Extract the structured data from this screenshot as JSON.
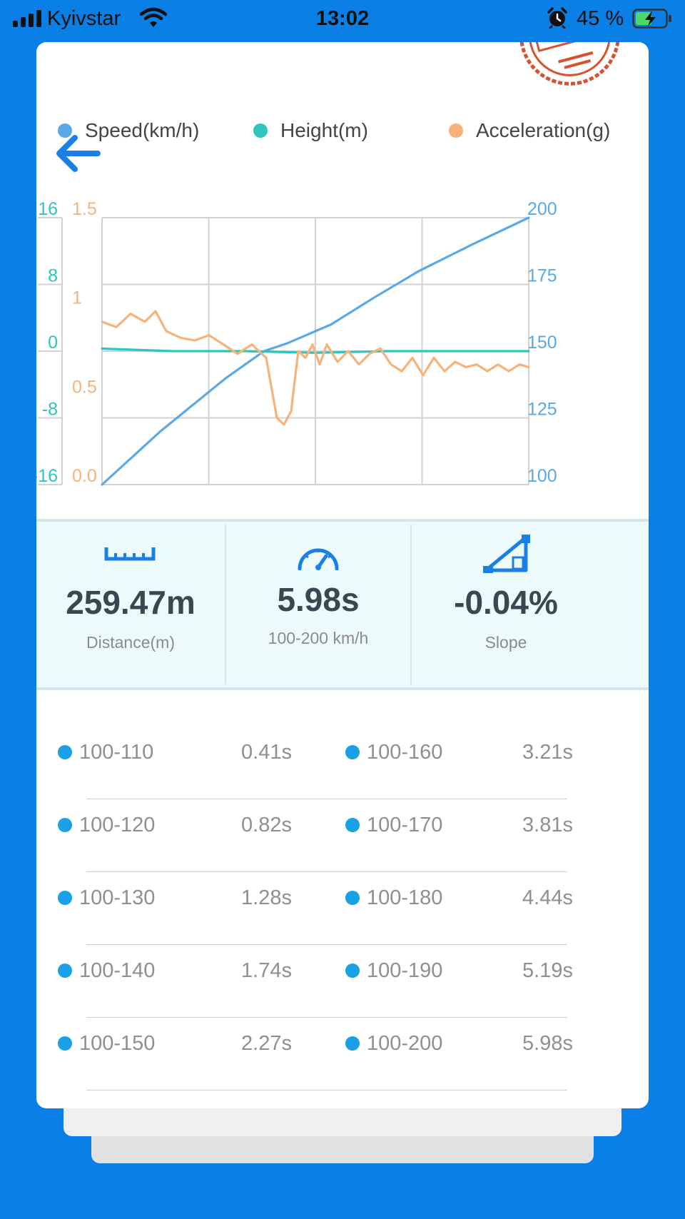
{
  "status_bar": {
    "carrier": "Kyivstar",
    "time": "13:02",
    "battery_percent": "45 %"
  },
  "legend": [
    {
      "label": "Speed(km/h)",
      "color": "#5aa9e6"
    },
    {
      "label": "Height(m)",
      "color": "#2ec4c0"
    },
    {
      "label": "Acceleration(g)",
      "color": "#f7b27a"
    }
  ],
  "chart_data": {
    "type": "line",
    "x_range": [
      0,
      5.98
    ],
    "axes": {
      "left_height": {
        "ticks": [
          "16",
          "8",
          "0",
          "-8",
          "-16"
        ],
        "range": [
          -16,
          16
        ],
        "color": "#2ec4c0"
      },
      "left_acceleration": {
        "ticks": [
          "1.5",
          "1",
          "0.5",
          "0.0"
        ],
        "range": [
          -0.5,
          1.5
        ],
        "color": "#f7b27a"
      },
      "right_speed": {
        "ticks": [
          "200",
          "175",
          "150",
          "125",
          "100"
        ],
        "range": [
          100,
          200
        ],
        "color": "#5aa9e6"
      }
    },
    "grid": true,
    "legend_position": "top",
    "series": [
      {
        "name": "Speed(km/h)",
        "axis": "right_speed",
        "color": "#5aa9e6",
        "x": [
          0,
          0.41,
          0.82,
          1.28,
          1.74,
          2.27,
          2.6,
          3.21,
          3.81,
          4.44,
          5.19,
          5.98
        ],
        "y": [
          100,
          110,
          120,
          130,
          140,
          150,
          153,
          160,
          170,
          180,
          190,
          200
        ]
      },
      {
        "name": "Height(m)",
        "axis": "left_height",
        "color": "#2ec4c0",
        "x": [
          0,
          1,
          2,
          3,
          4,
          5,
          5.98
        ],
        "y": [
          0.3,
          0,
          0,
          -0.2,
          0,
          0,
          0
        ]
      },
      {
        "name": "Acceleration(g)",
        "axis": "left_acceleration",
        "color": "#f7b27a",
        "x": [
          0,
          0.2,
          0.4,
          0.6,
          0.75,
          0.9,
          1.1,
          1.3,
          1.5,
          1.7,
          1.9,
          2.1,
          2.3,
          2.45,
          2.55,
          2.65,
          2.75,
          2.85,
          2.95,
          3.05,
          3.15,
          3.3,
          3.45,
          3.6,
          3.75,
          3.9,
          4.05,
          4.2,
          4.35,
          4.5,
          4.65,
          4.8,
          4.95,
          5.1,
          5.25,
          5.4,
          5.55,
          5.7,
          5.85,
          5.98
        ],
        "y": [
          0.72,
          0.68,
          0.78,
          0.72,
          0.8,
          0.65,
          0.6,
          0.58,
          0.62,
          0.55,
          0.48,
          0.55,
          0.45,
          0.0,
          -0.05,
          0.05,
          0.5,
          0.45,
          0.55,
          0.4,
          0.55,
          0.42,
          0.5,
          0.4,
          0.48,
          0.52,
          0.4,
          0.35,
          0.45,
          0.32,
          0.45,
          0.35,
          0.42,
          0.38,
          0.4,
          0.35,
          0.4,
          0.35,
          0.4,
          0.38
        ]
      }
    ]
  },
  "stats": [
    {
      "value": "259.47m",
      "label": "Distance(m)",
      "icon": "ruler-icon"
    },
    {
      "value": "5.98s",
      "label": "100-200 km/h",
      "icon": "speedometer-icon"
    },
    {
      "value": "-0.04%",
      "label": "Slope",
      "icon": "slope-icon"
    }
  ],
  "intervals": [
    {
      "left_range": "100-110",
      "left_time": "0.41s",
      "right_range": "100-160",
      "right_time": "3.21s"
    },
    {
      "left_range": "100-120",
      "left_time": "0.82s",
      "right_range": "100-170",
      "right_time": "3.81s"
    },
    {
      "left_range": "100-130",
      "left_time": "1.28s",
      "right_range": "100-180",
      "right_time": "4.44s"
    },
    {
      "left_range": "100-140",
      "left_time": "1.74s",
      "right_range": "100-190",
      "right_time": "5.19s"
    },
    {
      "left_range": "100-150",
      "left_time": "2.27s",
      "right_range": "100-200",
      "right_time": "5.98s"
    }
  ],
  "colors": {
    "background": "#0a7fe6",
    "accent": "#1aa0e6",
    "stamp": "#d9502d"
  }
}
